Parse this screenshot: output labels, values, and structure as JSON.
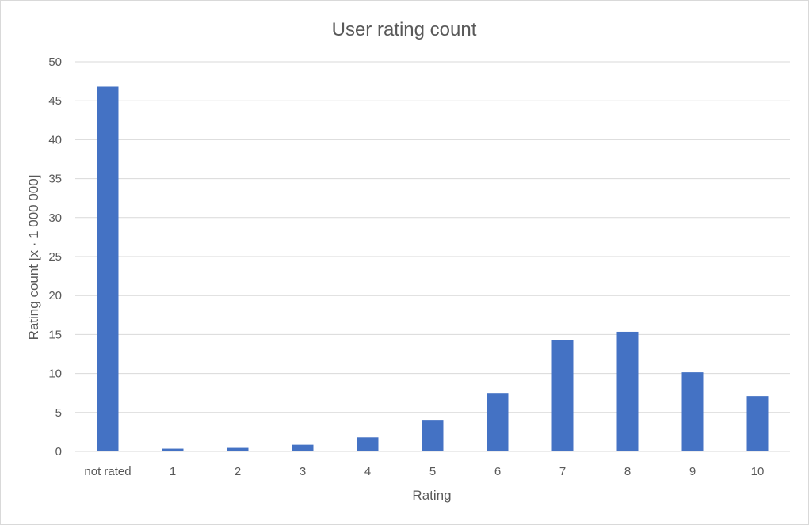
{
  "chart_data": {
    "type": "bar",
    "title": "User rating count",
    "xlabel": "Rating",
    "ylabel": "Rating count [x · 1 000 000]",
    "categories": [
      "not rated",
      "1",
      "2",
      "3",
      "4",
      "5",
      "6",
      "7",
      "8",
      "9",
      "10"
    ],
    "values": [
      46.8,
      0.35,
      0.45,
      0.85,
      1.8,
      3.95,
      7.5,
      14.25,
      15.35,
      10.15,
      7.1
    ],
    "ylim": [
      0,
      50
    ],
    "yticks": [
      0,
      5,
      10,
      15,
      20,
      25,
      30,
      35,
      40,
      45,
      50
    ],
    "grid": true,
    "legend": "none",
    "bar_color": "#4472c4"
  }
}
